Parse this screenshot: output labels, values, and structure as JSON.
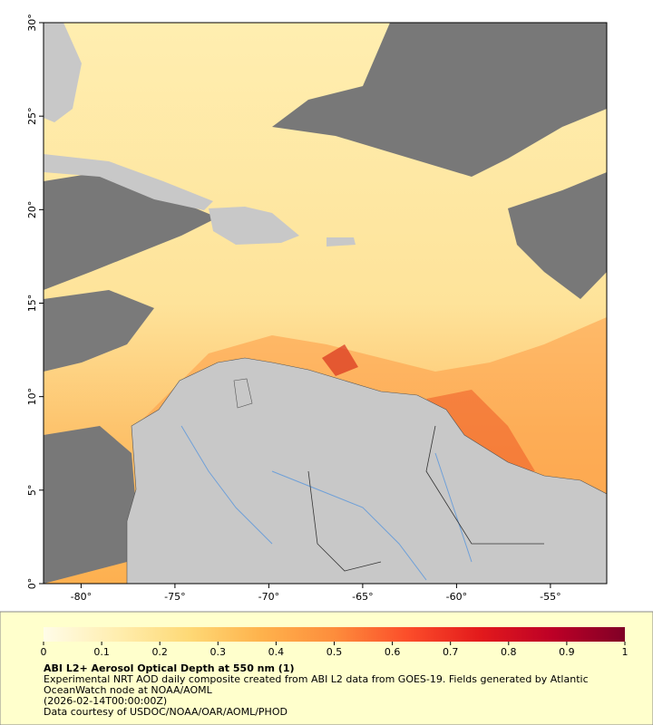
{
  "chart_data": {
    "type": "map",
    "xlim": [
      -82,
      -52
    ],
    "ylim": [
      0,
      30
    ],
    "xticks": [
      {
        "value": -80,
        "label": "-80°"
      },
      {
        "value": -75,
        "label": "-75°"
      },
      {
        "value": -70,
        "label": "-70°"
      },
      {
        "value": -65,
        "label": "-65°"
      },
      {
        "value": -60,
        "label": "-60°"
      },
      {
        "value": -55,
        "label": "-55°"
      }
    ],
    "yticks": [
      {
        "value": 0,
        "label": "0°"
      },
      {
        "value": 5,
        "label": "5°"
      },
      {
        "value": 10,
        "label": "10°"
      },
      {
        "value": 15,
        "label": "15°"
      },
      {
        "value": 20,
        "label": "20°"
      },
      {
        "value": 25,
        "label": "25°"
      },
      {
        "value": 30,
        "label": "30°"
      }
    ],
    "colorbar": {
      "lim": [
        0,
        1
      ],
      "ticks": [
        0,
        0.1,
        0.2,
        0.3,
        0.4,
        0.5,
        0.6,
        0.7,
        0.8,
        0.9,
        1
      ],
      "colors": [
        "#fffce8",
        "#ffeeb0",
        "#fed976",
        "#feb24c",
        "#fd8d3c",
        "#fc4e2a",
        "#e31a1c",
        "#bd0026",
        "#800026"
      ]
    },
    "title": "ABI L2+ Aerosol Optical Depth at 550 nm (1)",
    "description": "Experimental NRT AOD daily composite created from ABI L2 data from GOES-19. Fields generated by Atlantic OceanWatch node at NOAA/AOML",
    "timestamp": "(2026-02-14T00:00:00Z)",
    "credit": "Data courtesy of USDOC/NOAA/OAR/AOML/PHOD"
  }
}
